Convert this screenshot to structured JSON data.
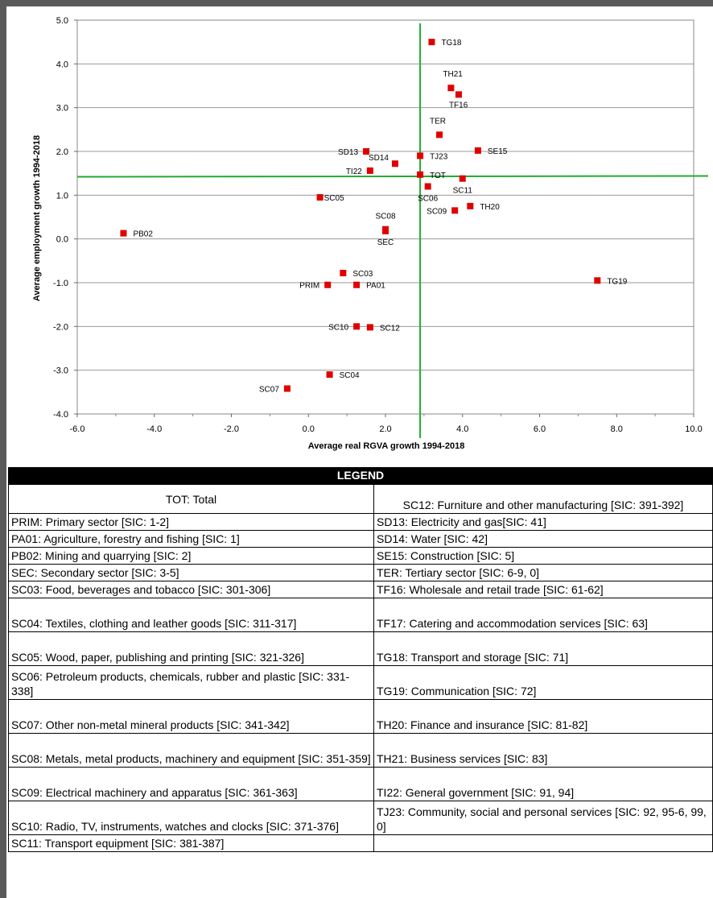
{
  "chart_data": {
    "type": "scatter",
    "xlabel": "Average real RGVA growth 1994-2018",
    "ylabel": "Average employment growth 1994-2018",
    "xlim": [
      -6.0,
      10.0
    ],
    "ylim": [
      -4.0,
      5.0
    ],
    "x_ticks": [
      "-6.0",
      "-4.0",
      "-2.0",
      "0.0",
      "2.0",
      "4.0",
      "6.0",
      "8.0",
      "10.0"
    ],
    "y_ticks": [
      "5.0",
      "4.0",
      "3.0",
      "2.0",
      "1.0",
      "0.0",
      "-1.0",
      "-2.0",
      "-3.0",
      "-4.0"
    ],
    "grid": "horizontal",
    "reference_lines": {
      "x": 2.9,
      "y": 1.42
    },
    "marker_color": "#e00000",
    "reference_color": "#22aa33",
    "points": [
      {
        "label": "TG18",
        "x": 3.2,
        "y": 4.5
      },
      {
        "label": "TH21",
        "x": 3.7,
        "y": 3.45
      },
      {
        "label": "TF16",
        "x": 3.9,
        "y": 3.3
      },
      {
        "label": "TER",
        "x": 3.4,
        "y": 2.38
      },
      {
        "label": "SE15",
        "x": 4.4,
        "y": 2.02
      },
      {
        "label": "SD13",
        "x": 1.5,
        "y": 2.0
      },
      {
        "label": "TJ23",
        "x": 2.9,
        "y": 1.9
      },
      {
        "label": "SD14",
        "x": 2.25,
        "y": 1.72
      },
      {
        "label": "TI22",
        "x": 1.6,
        "y": 1.56
      },
      {
        "label": "TOT",
        "x": 2.9,
        "y": 1.47
      },
      {
        "label": "SC11",
        "x": 4.0,
        "y": 1.38
      },
      {
        "label": "SC06",
        "x": 3.1,
        "y": 1.2
      },
      {
        "label": "SC05",
        "x": 0.3,
        "y": 0.95
      },
      {
        "label": "TH20",
        "x": 4.2,
        "y": 0.75
      },
      {
        "label": "SC09",
        "x": 3.8,
        "y": 0.65
      },
      {
        "label": "SC08",
        "x": 2.0,
        "y": 0.22
      },
      {
        "label": "SEC",
        "x": 2.0,
        "y": 0.18
      },
      {
        "label": "PB02",
        "x": -4.8,
        "y": 0.13
      },
      {
        "label": "SC03",
        "x": 0.9,
        "y": -0.78
      },
      {
        "label": "PRIM",
        "x": 0.5,
        "y": -1.05
      },
      {
        "label": "PA01",
        "x": 1.25,
        "y": -1.05
      },
      {
        "label": "TG19",
        "x": 7.5,
        "y": -0.95
      },
      {
        "label": "SC10",
        "x": 1.25,
        "y": -2.0
      },
      {
        "label": "SC12",
        "x": 1.6,
        "y": -2.02
      },
      {
        "label": "SC04",
        "x": 0.55,
        "y": -3.1
      },
      {
        "label": "SC07",
        "x": -0.55,
        "y": -3.42
      }
    ]
  },
  "legend": {
    "title": "LEGEND",
    "rows": [
      [
        "TOT: Total",
        "SC12: Furniture and other manufacturing  [SIC: 391-392]"
      ],
      [
        "PRIM: Primary sector [SIC: 1-2]",
        "SD13: Electricity and gas[SIC: 41]"
      ],
      [
        "PA01: Agriculture, forestry and fishing [SIC: 1]",
        "SD14: Water [SIC: 42]"
      ],
      [
        "PB02: Mining and quarrying [SIC: 2]",
        "SE15: Construction [SIC: 5]"
      ],
      [
        "SEC: Secondary sector [SIC: 3-5]",
        "TER: Tertiary sector [SIC: 6-9, 0]"
      ],
      [
        "SC03: Food, beverages and tobacco [SIC: 301-306]",
        "TF16: Wholesale and retail trade [SIC: 61-62]"
      ],
      [
        "SC04: Textiles, clothing and leather goods [SIC: 311-317]",
        "TF17: Catering and accommodation services [SIC: 63]"
      ],
      [
        "SC05: Wood, paper, publishing and printing [SIC: 321-326]",
        "TG18: Transport and storage [SIC: 71]"
      ],
      [
        "SC06: Petroleum products, chemicals, rubber and plastic [SIC: 331-338]",
        "TG19: Communication [SIC: 72]"
      ],
      [
        "SC07: Other non-metal mineral products [SIC: 341-342]",
        "TH20: Finance and insurance [SIC: 81-82]"
      ],
      [
        "SC08: Metals, metal products, machinery and equipment [SIC: 351-359]",
        "TH21: Business services [SIC: 83]"
      ],
      [
        "SC09: Electrical machinery and apparatus [SIC: 361-363]",
        "TI22: General government [SIC: 91, 94]"
      ],
      [
        "SC10: Radio, TV, instruments, watches and clocks [SIC: 371-376]",
        "TJ23: Community, social and personal services [SIC: 92, 95-6, 99, 0]"
      ],
      [
        "SC11: Transport equipment [SIC: 381-387]",
        ""
      ]
    ]
  }
}
